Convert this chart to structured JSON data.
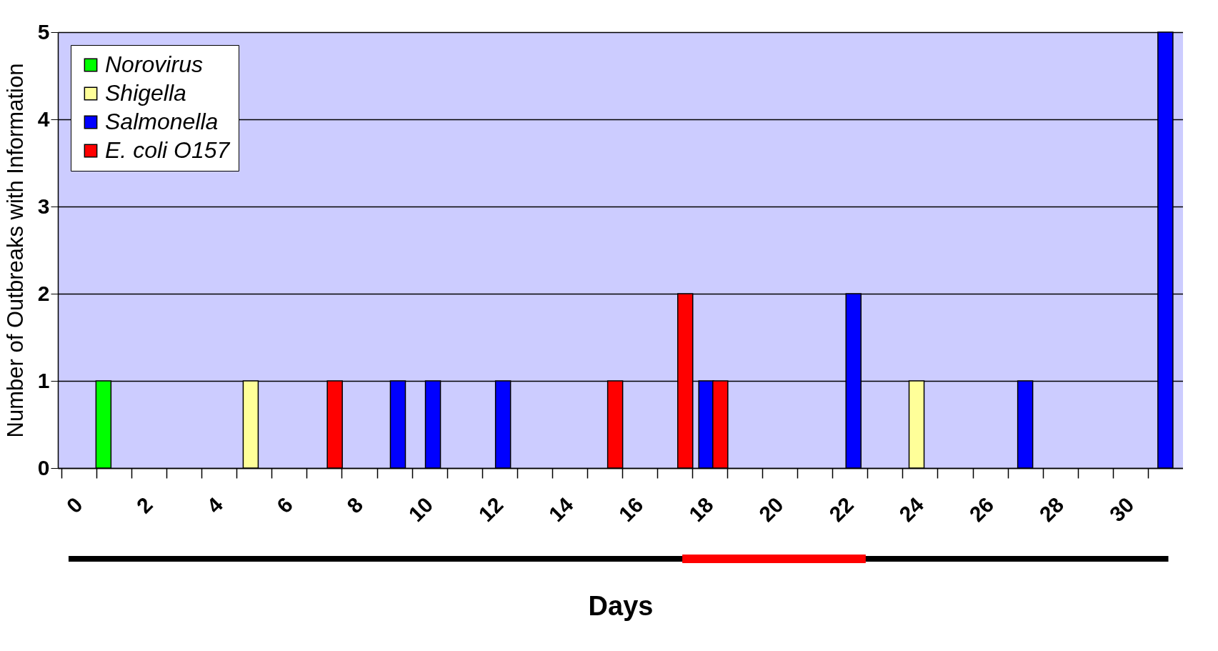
{
  "chart_data": {
    "type": "bar",
    "xlabel": "Days",
    "ylabel": "Number of Outbreaks with Information",
    "series": [
      {
        "name": "Norovirus",
        "color": "#00ff00",
        "x": [
          1.2
        ],
        "values": [
          1
        ]
      },
      {
        "name": "Shigella",
        "color": "#ffff99",
        "x": [
          5.4,
          24.4
        ],
        "values": [
          1,
          1
        ]
      },
      {
        "name": "Salmonella",
        "color": "#0000ff",
        "x": [
          9.6,
          10.6,
          12.6,
          18.4,
          22.6,
          27.5,
          31.5
        ],
        "values": [
          1,
          1,
          1,
          1,
          2,
          1,
          5
        ]
      },
      {
        "name": "E. coli O157",
        "color": "#ff0000",
        "x": [
          7.8,
          15.8,
          17.8,
          18.8
        ],
        "values": [
          1,
          1,
          2,
          1
        ]
      }
    ],
    "xlim": [
      0,
      31.9
    ],
    "xticks": [
      0,
      {
        "value": 1,
        "label": null
      },
      2,
      {
        "value": 3,
        "label": null
      },
      4,
      {
        "value": 5,
        "label": null
      },
      6,
      {
        "value": 7,
        "label": null
      },
      8,
      {
        "value": 9,
        "label": null
      },
      10,
      {
        "value": 11,
        "label": null
      },
      12,
      {
        "value": 13,
        "label": null
      },
      14,
      {
        "value": 15,
        "label": null
      },
      16,
      {
        "value": 17,
        "label": null
      },
      18,
      {
        "value": 19,
        "label": null
      },
      20,
      {
        "value": 21,
        "label": null
      },
      22,
      {
        "value": 23,
        "label": null
      },
      24,
      {
        "value": 25,
        "label": null
      },
      26,
      {
        "value": 27,
        "label": null
      },
      28,
      {
        "value": 29,
        "label": null
      },
      30,
      {
        "value": 31,
        "label": null
      }
    ],
    "ylim": [
      0,
      5
    ],
    "yticks": [
      0,
      1,
      2,
      3,
      4,
      5
    ],
    "grid": "y",
    "legend": "top left"
  }
}
